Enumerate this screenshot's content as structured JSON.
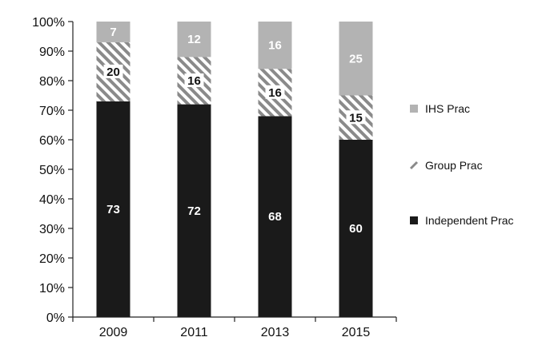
{
  "chart_data": {
    "type": "bar",
    "stacked": true,
    "percent": true,
    "categories": [
      "2009",
      "2011",
      "2013",
      "2015"
    ],
    "series": [
      {
        "name": "Independent Prac",
        "values": [
          73,
          72,
          68,
          60
        ],
        "color": "#1a1a1a",
        "pattern": "solid"
      },
      {
        "name": "Group Prac",
        "values": [
          20,
          16,
          16,
          15
        ],
        "color": "#8a8a8a",
        "pattern": "diagonal-hatch"
      },
      {
        "name": "IHS Prac",
        "values": [
          7,
          12,
          16,
          25
        ],
        "color": "#b3b3b3",
        "pattern": "solid"
      }
    ],
    "legend_order": [
      "IHS Prac",
      "Group Prac",
      "Independent Prac"
    ],
    "y_ticks": [
      "0%",
      "10%",
      "20%",
      "30%",
      "40%",
      "50%",
      "60%",
      "70%",
      "80%",
      "90%",
      "100%"
    ],
    "ylim": [
      0,
      100
    ],
    "grid": false,
    "legend_position": "right",
    "title": "",
    "xlabel": "",
    "ylabel": ""
  }
}
